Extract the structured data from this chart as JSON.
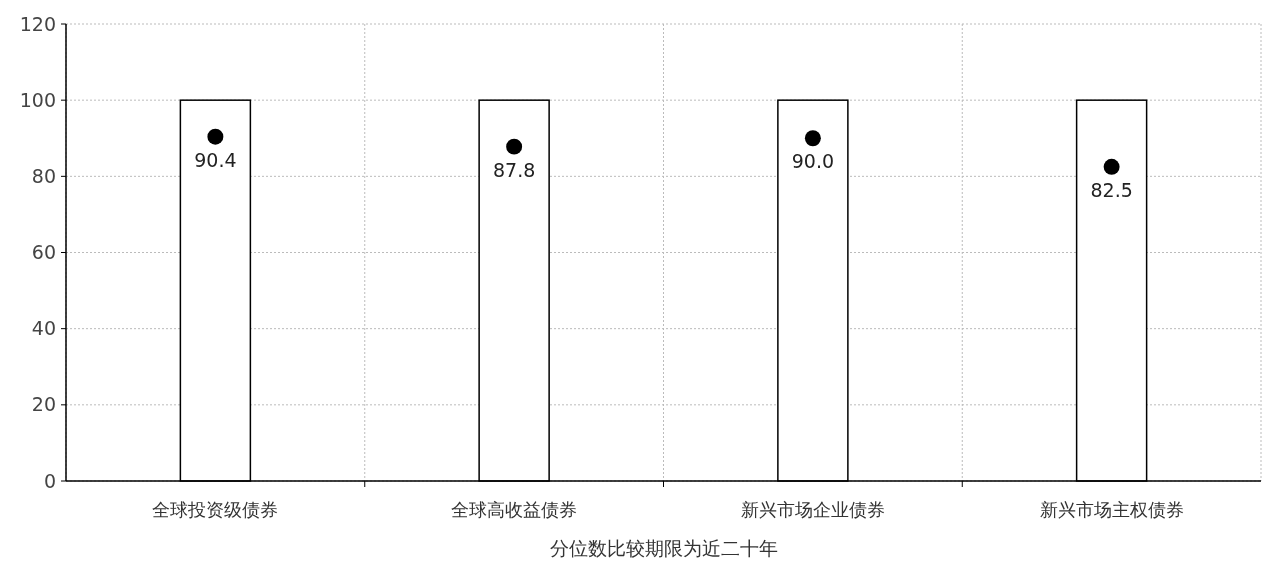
{
  "chart_data": {
    "type": "bar",
    "xlabel": "分位数比较期限为近二十年",
    "categories": [
      "全球投资级债券",
      "全球高收益债券",
      "新兴市场企业债券",
      "新兴市场主权债券"
    ],
    "series": [
      {
        "color": "#ffffff",
        "values": [
          100,
          100,
          100,
          100
        ]
      },
      {
        "type": "scatter",
        "color": "#000000",
        "x": [
          "全球投资级债券",
          "全球高收益债券",
          "新兴市场企业债券",
          "新兴市场主权债券"
        ],
        "values": [
          90.4,
          87.8,
          90.0,
          82.5
        ],
        "value_labels": [
          "90.4",
          "87.8",
          "90.0",
          "82.5"
        ]
      }
    ],
    "ylim": [
      0,
      120
    ],
    "yticks": [
      0,
      20,
      40,
      60,
      80,
      100,
      120
    ],
    "grid": true,
    "marker": "circle"
  }
}
